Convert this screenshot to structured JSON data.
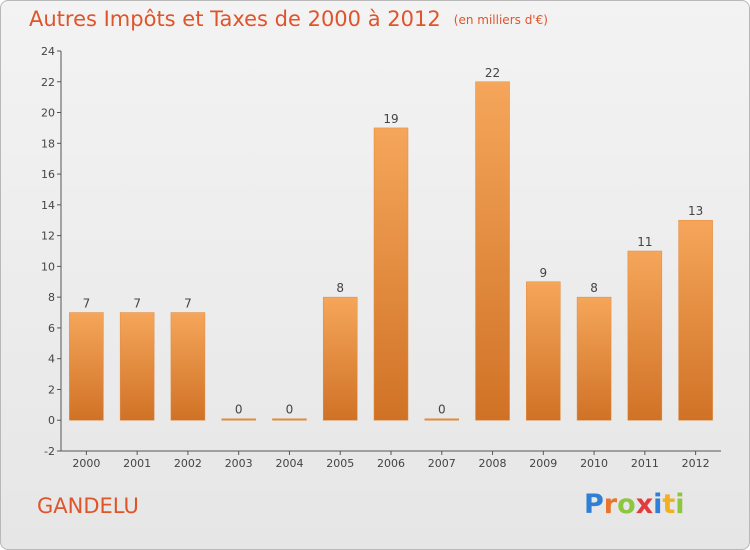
{
  "title": "Autres Impôts et Taxes de 2000 à 2012",
  "subtitle": "(en milliers d'€)",
  "commune": "GANDELU",
  "logo": {
    "text": "Proxiti",
    "letters": [
      {
        "char": "P",
        "color": "#2f7fd6"
      },
      {
        "char": "r",
        "color": "#e8752b"
      },
      {
        "char": "o",
        "color": "#8dc63f"
      },
      {
        "char": "x",
        "color": "#e23b3b"
      },
      {
        "char": "i",
        "color": "#2f7fd6"
      },
      {
        "char": "t",
        "color": "#f2b01e"
      },
      {
        "char": "i",
        "color": "#8dc63f"
      }
    ]
  },
  "colors": {
    "bar_top": "#f5a65a",
    "bar_bottom": "#d07226",
    "title": "#e0542a",
    "text": "#444444"
  },
  "chart_data": {
    "type": "bar",
    "categories": [
      "2000",
      "2001",
      "2002",
      "2003",
      "2004",
      "2005",
      "2006",
      "2007",
      "2008",
      "2009",
      "2010",
      "2011",
      "2012"
    ],
    "values": [
      7,
      7,
      7,
      0,
      0,
      8,
      19,
      0,
      22,
      9,
      8,
      11,
      13
    ],
    "value_labels": [
      "7",
      "7",
      "7",
      "0",
      "0",
      "8",
      "19",
      "0",
      "22",
      "9",
      "8",
      "11",
      "13"
    ],
    "y_ticks": [
      -2,
      0,
      2,
      4,
      6,
      8,
      10,
      12,
      14,
      16,
      18,
      20,
      22,
      24
    ],
    "y_tick_labels": [
      "-2",
      "0",
      "2",
      "4",
      "6",
      "8",
      "10",
      "12",
      "14",
      "16",
      "18",
      "20",
      "22",
      "24"
    ],
    "ylim": [
      -2,
      24
    ],
    "grid": false,
    "legend": "none"
  }
}
